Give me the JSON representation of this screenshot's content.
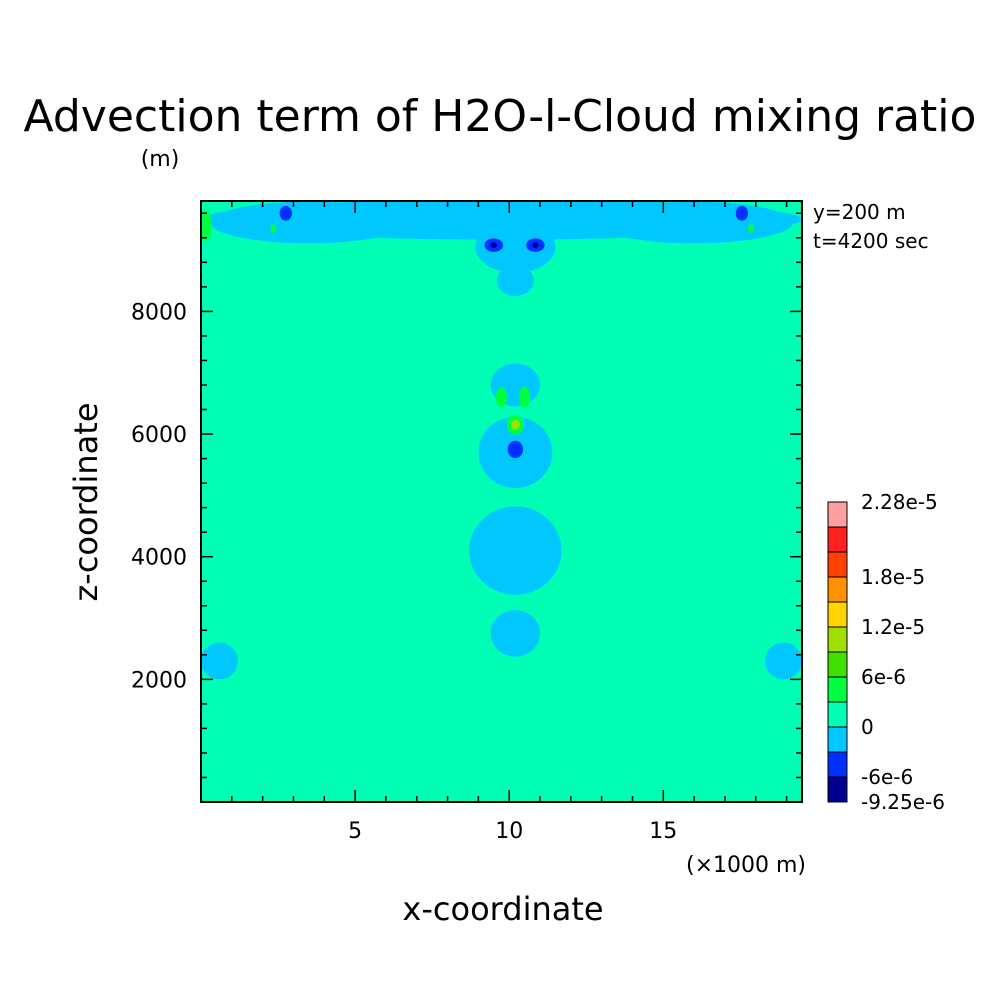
{
  "chart_data": {
    "type": "heatmap",
    "title": "Advection term of H2O-l-Cloud mixing ratio",
    "unit_label": "(m)",
    "xlabel": "x-coordinate",
    "ylabel": "z-coordinate",
    "x_unit": "(×1000 m)",
    "xlim": [
      0,
      19.5
    ],
    "ylim": [
      0,
      9800
    ],
    "x_ticks": [
      5,
      10,
      15
    ],
    "y_ticks": [
      2000,
      4000,
      6000,
      8000
    ],
    "x_tick_labels": [
      "5",
      "10",
      "15"
    ],
    "y_tick_labels": [
      "2000",
      "4000",
      "6000",
      "8000"
    ],
    "annotations": {
      "y": "y=200 m",
      "t": "t=4200 sec"
    },
    "background_level": "0",
    "colorbar": {
      "labels": [
        "2.28e-5",
        "1.8e-5",
        "1.2e-5",
        "6e-6",
        "0",
        "-6e-6",
        "-9.25e-6"
      ],
      "label_values": [
        2.28e-05,
        1.8e-05,
        1.2e-05,
        6e-06,
        0,
        -6e-06,
        -9.25e-06
      ],
      "levels": [
        -9.25e-06,
        -6e-06,
        -3e-06,
        0,
        3e-06,
        6e-06,
        9e-06,
        1.2e-05,
        1.5e-05,
        1.8e-05,
        2.1e-05,
        2.28e-05
      ],
      "colors": [
        "#000090",
        "#0030ff",
        "#00c8ff",
        "#00ffb4",
        "#00ff40",
        "#40e000",
        "#a0e000",
        "#ffd400",
        "#ff9000",
        "#ff4000",
        "#ff2020",
        "#ffa0a0"
      ]
    },
    "features": [
      {
        "name": "upper-band",
        "x": 9.75,
        "z": 9500,
        "rx": 9.75,
        "rz": 330,
        "level": -3e-06
      },
      {
        "name": "upper-left-bay",
        "x": 3.5,
        "z": 9450,
        "rx": 3.2,
        "rz": 340,
        "level": -3e-06
      },
      {
        "name": "upper-right-bay",
        "x": 16.0,
        "z": 9450,
        "rx": 3.2,
        "rz": 340,
        "level": -3e-06
      },
      {
        "name": "top-center-blob",
        "x": 10.2,
        "z": 9050,
        "rx": 1.3,
        "rz": 420,
        "level": -3e-06
      },
      {
        "name": "top-center-lower",
        "x": 10.2,
        "z": 8500,
        "rx": 0.6,
        "rz": 250,
        "level": -3e-06
      },
      {
        "name": "mid-upper-blob",
        "x": 10.2,
        "z": 6800,
        "rx": 0.8,
        "rz": 350,
        "level": -3e-06
      },
      {
        "name": "mid-column",
        "x": 10.2,
        "z": 5700,
        "rx": 1.2,
        "rz": 580,
        "level": -3e-06
      },
      {
        "name": "lower-column",
        "x": 10.2,
        "z": 4100,
        "rx": 1.5,
        "rz": 720,
        "level": -3e-06
      },
      {
        "name": "bottom-column",
        "x": 10.2,
        "z": 2750,
        "rx": 0.8,
        "rz": 380,
        "level": -3e-06
      },
      {
        "name": "left-bottom-patch",
        "x": 0.6,
        "z": 2300,
        "rx": 0.6,
        "rz": 300,
        "level": -3e-06
      },
      {
        "name": "right-bottom-patch",
        "x": 18.9,
        "z": 2300,
        "rx": 0.6,
        "rz": 300,
        "level": -3e-06
      },
      {
        "name": "neg-left-eye",
        "x": 9.5,
        "z": 9080,
        "rx": 0.3,
        "rz": 110,
        "level": -6e-06
      },
      {
        "name": "neg-right-eye",
        "x": 10.85,
        "z": 9080,
        "rx": 0.3,
        "rz": 110,
        "level": -6e-06
      },
      {
        "name": "min-left-eye",
        "x": 9.5,
        "z": 9080,
        "rx": 0.1,
        "rz": 45,
        "level": -9.25e-06
      },
      {
        "name": "min-right-eye",
        "x": 10.85,
        "z": 9080,
        "rx": 0.1,
        "rz": 45,
        "level": -9.25e-06
      },
      {
        "name": "neg-left-top",
        "x": 2.75,
        "z": 9600,
        "rx": 0.2,
        "rz": 120,
        "level": -6e-06
      },
      {
        "name": "neg-right-top",
        "x": 17.55,
        "z": 9600,
        "rx": 0.2,
        "rz": 120,
        "level": -6e-06
      },
      {
        "name": "neg-mid",
        "x": 10.2,
        "z": 5750,
        "rx": 0.25,
        "rz": 140,
        "level": -6e-06
      },
      {
        "name": "pos-left-edge",
        "x": 0.15,
        "z": 9400,
        "rx": 0.2,
        "rz": 250,
        "level": 3e-06
      },
      {
        "name": "pos-left-dot",
        "x": 2.35,
        "z": 9350,
        "rx": 0.1,
        "rz": 70,
        "level": 3e-06
      },
      {
        "name": "pos-right-dot",
        "x": 17.85,
        "z": 9350,
        "rx": 0.1,
        "rz": 70,
        "level": 3e-06
      },
      {
        "name": "pos-mid-left",
        "x": 9.75,
        "z": 6600,
        "rx": 0.18,
        "rz": 170,
        "level": 3e-06
      },
      {
        "name": "pos-mid-right",
        "x": 10.5,
        "z": 6600,
        "rx": 0.18,
        "rz": 170,
        "level": 3e-06
      },
      {
        "name": "pos-mid-center",
        "x": 10.2,
        "z": 6150,
        "rx": 0.28,
        "rz": 160,
        "level": 3e-06
      },
      {
        "name": "pos-mid-core",
        "x": 10.2,
        "z": 6150,
        "rx": 0.14,
        "rz": 80,
        "level": 9e-06
      }
    ]
  }
}
